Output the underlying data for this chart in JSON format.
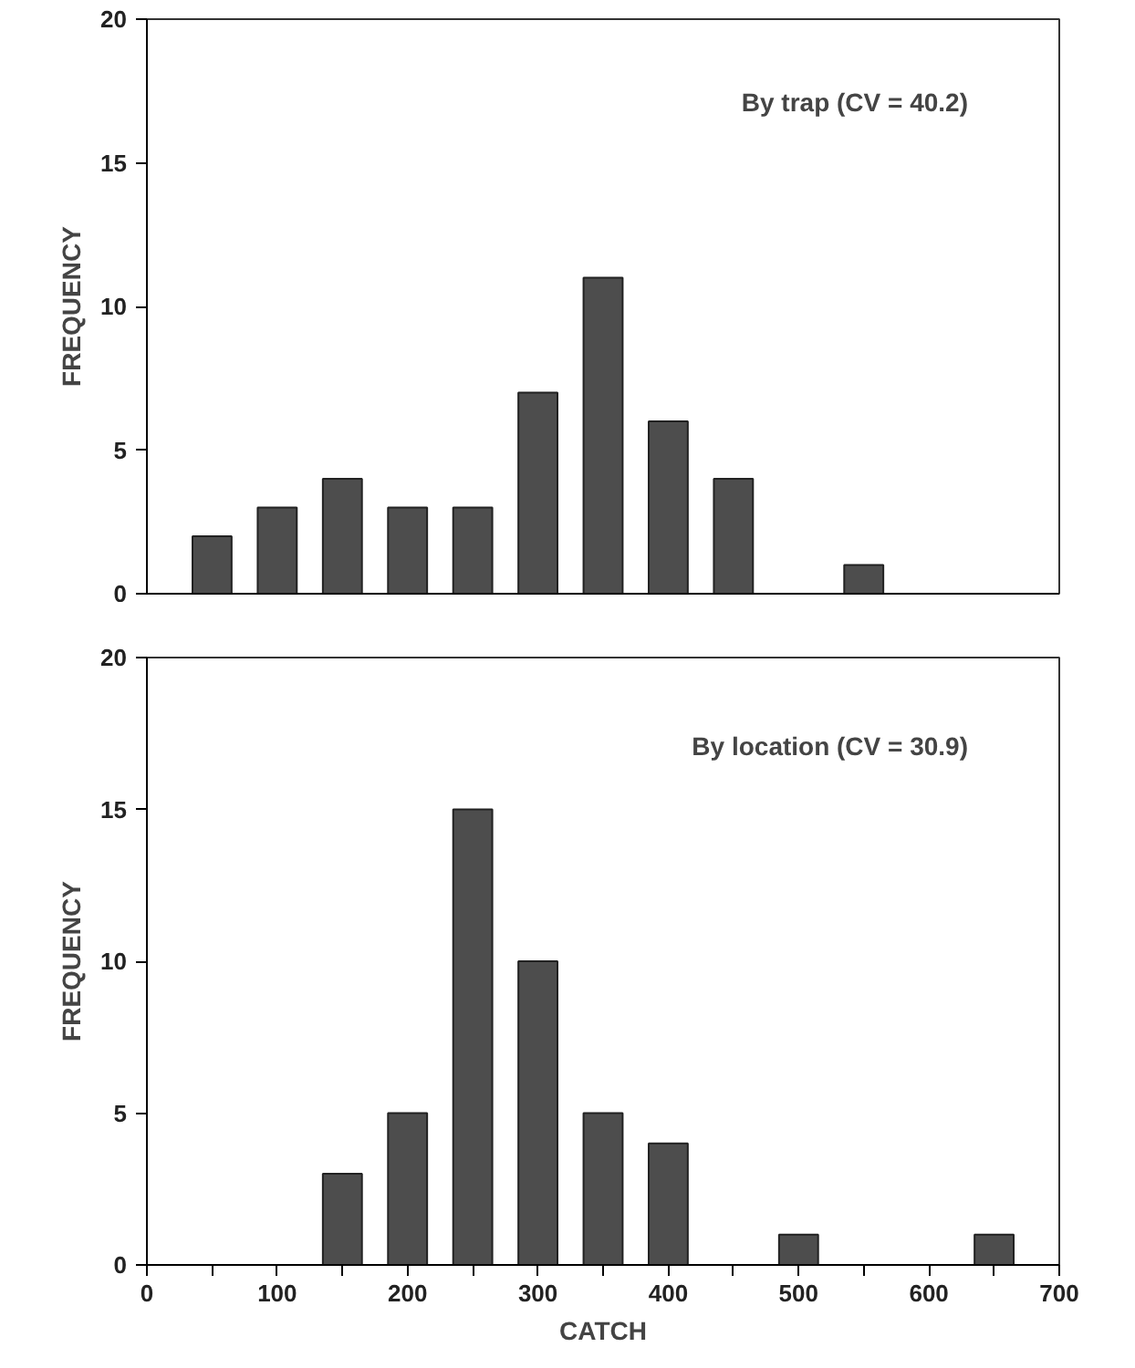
{
  "chart_data": [
    {
      "type": "bar",
      "x": [
        50,
        100,
        150,
        200,
        250,
        300,
        350,
        400,
        450,
        550
      ],
      "values": [
        2,
        3,
        4,
        3,
        3,
        7,
        11,
        6,
        4,
        1
      ],
      "color": "#4d4d4d",
      "xlim": [
        0,
        700
      ],
      "ylim": [
        0,
        20
      ],
      "yticks": [
        0,
        5,
        10,
        15,
        20
      ],
      "ylabel": "FREQUENCY",
      "annotations": [
        "By trap (CV = 40.2)"
      ],
      "tick_labels": "y",
      "grid": false
    },
    {
      "type": "bar",
      "x": [
        150,
        200,
        250,
        300,
        350,
        400,
        500,
        650
      ],
      "values": [
        3,
        5,
        15,
        10,
        5,
        4,
        1,
        1
      ],
      "color": "#4d4d4d",
      "xlim": [
        0,
        700
      ],
      "ylim": [
        0,
        20
      ],
      "yticks": [
        0,
        5,
        10,
        15,
        20
      ],
      "xticks": [
        0,
        {
          "value": 50,
          "label": null
        },
        100,
        {
          "value": 150,
          "label": null
        },
        200,
        {
          "value": 250,
          "label": null
        },
        300,
        {
          "value": 350,
          "label": null
        },
        400,
        {
          "value": 450,
          "label": null
        },
        500,
        {
          "value": 550,
          "label": null
        },
        600,
        {
          "value": 650,
          "label": null
        },
        700
      ],
      "xlabel": "CATCH",
      "ylabel": "FREQUENCY",
      "annotations": [
        "By location (CV = 30.9)"
      ],
      "grid": false
    }
  ]
}
